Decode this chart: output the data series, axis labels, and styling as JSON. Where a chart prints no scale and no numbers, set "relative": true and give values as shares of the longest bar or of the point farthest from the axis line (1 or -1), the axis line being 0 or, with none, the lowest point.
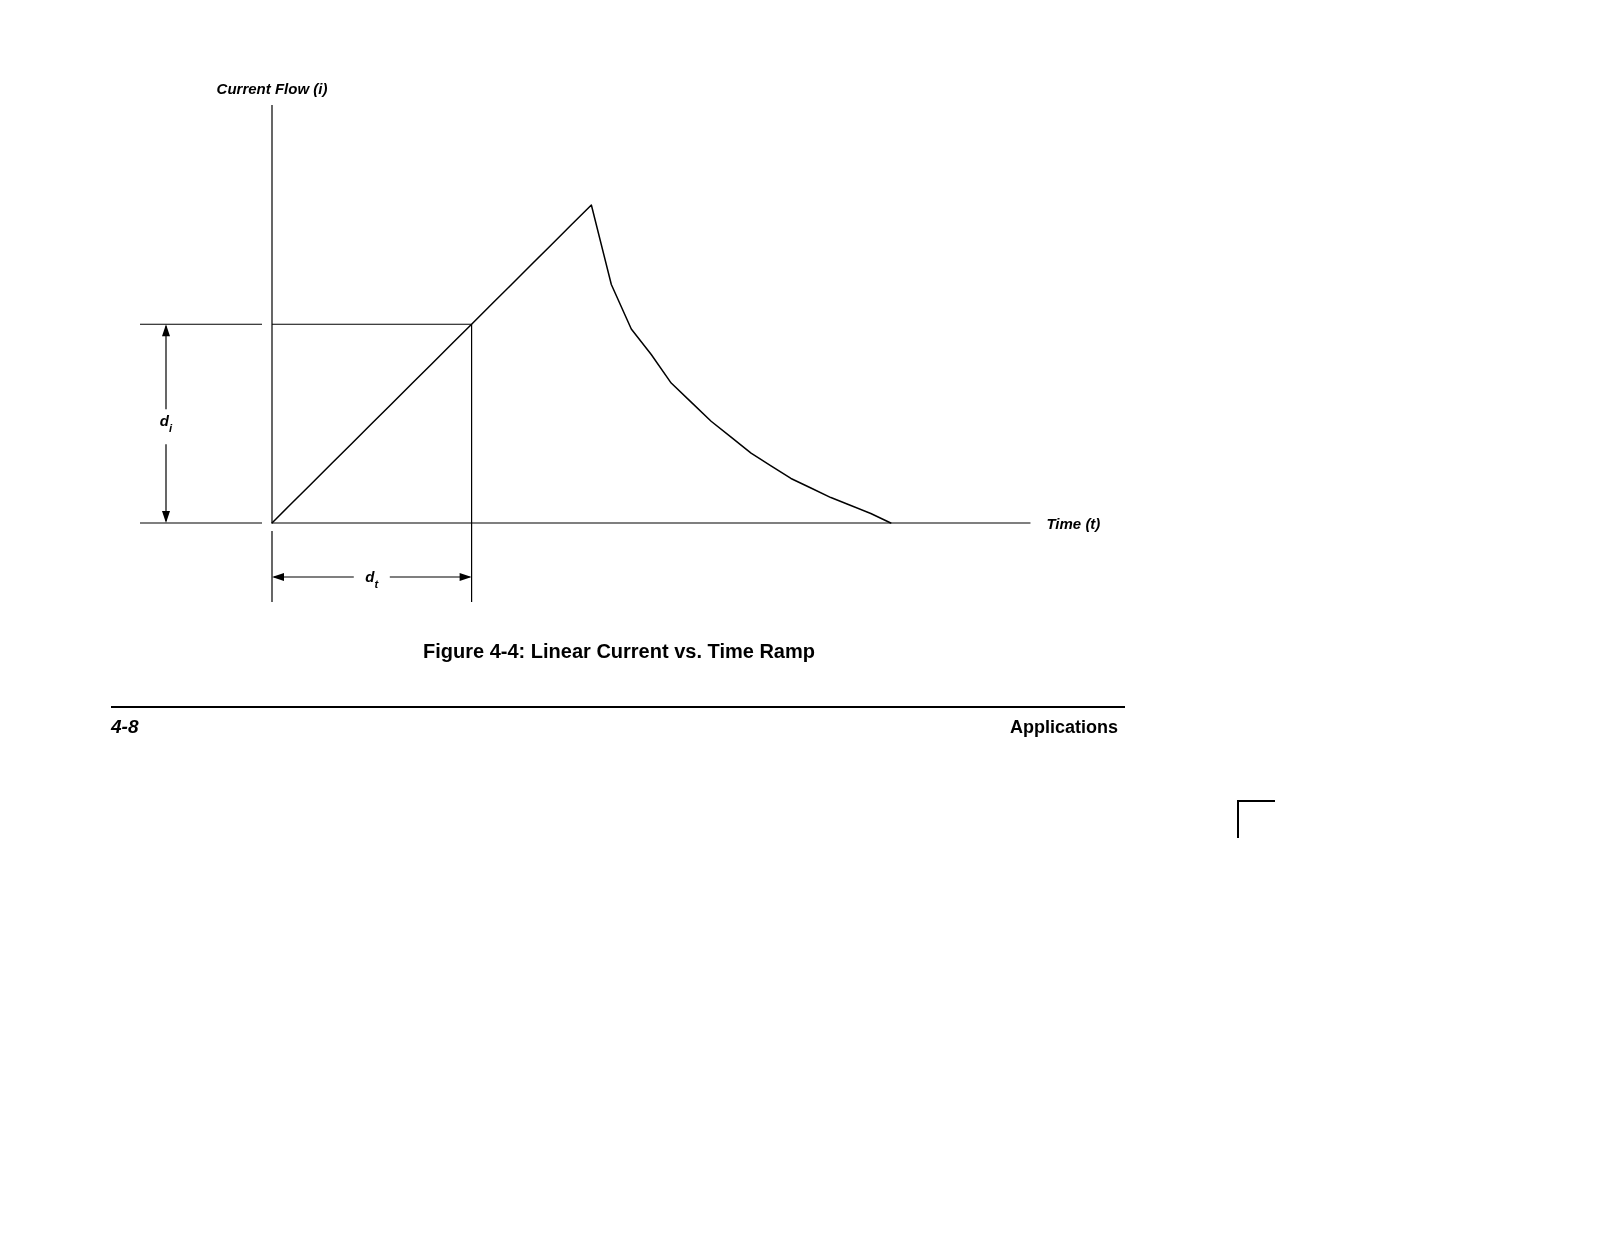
{
  "chart_data": {
    "type": "line",
    "title": "Figure 4-4:  Linear Current vs. Time Ramp",
    "xlabel": "Time (t)",
    "relative": true,
    "categories": [
      null,
      null,
      null,
      null,
      null,
      null,
      null,
      null,
      null,
      null,
      null,
      null,
      null,
      null,
      null,
      null,
      null,
      null,
      null,
      null,
      null,
      null,
      null,
      null,
      null,
      null,
      null,
      null,
      null,
      null,
      null,
      null,
      null,
      null,
      null,
      null,
      null,
      null,
      null
    ],
    "series": [
      {
        "color": "#000000",
        "values": [
          0,
          0.063,
          0.125,
          0.188,
          0.25,
          0.313,
          0.375,
          0.438,
          0.5,
          0.563,
          0.625,
          0.688,
          0.75,
          0.813,
          0.875,
          0.938,
          1,
          0.75,
          0.61,
          0.53,
          0.44,
          0.38,
          0.32,
          0.27,
          0.22,
          0.18,
          0.14,
          0.11,
          0.08,
          0.055,
          0.03,
          0,
          null,
          null,
          null,
          null,
          null,
          null,
          null
        ]
      }
    ],
    "ref_lines": [
      {
        "axis": "y",
        "value": 0.625,
        "label": "d$_{i}$"
      }
    ],
    "annotations": [
      "4-8",
      "Applications",
      "d$_{t}$",
      "Current Flow (i)"
    ]
  }
}
